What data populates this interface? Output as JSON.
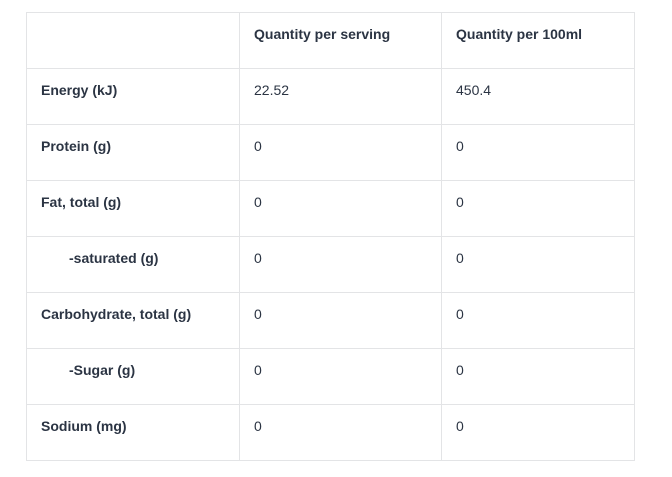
{
  "table": {
    "columns": [
      "",
      "Quantity per serving",
      "Quantity per 100ml"
    ],
    "rows": [
      {
        "label": "Energy (kJ)",
        "indent": false,
        "per_serving": "22.52",
        "per_100ml": "450.4"
      },
      {
        "label": "Protein (g)",
        "indent": false,
        "per_serving": "0",
        "per_100ml": "0"
      },
      {
        "label": "Fat, total (g)",
        "indent": false,
        "per_serving": "0",
        "per_100ml": "0"
      },
      {
        "label": "-saturated (g)",
        "indent": true,
        "per_serving": "0",
        "per_100ml": "0"
      },
      {
        "label": "Carbohydrate, total (g)",
        "indent": false,
        "per_serving": "0",
        "per_100ml": "0"
      },
      {
        "label": "-Sugar (g)",
        "indent": true,
        "per_serving": "0",
        "per_100ml": "0"
      },
      {
        "label": "Sodium (mg)",
        "indent": false,
        "per_serving": "0",
        "per_100ml": "0"
      }
    ]
  },
  "colors": {
    "border": "#e3e4e6",
    "text": "#2b3443",
    "background": "#ffffff"
  }
}
